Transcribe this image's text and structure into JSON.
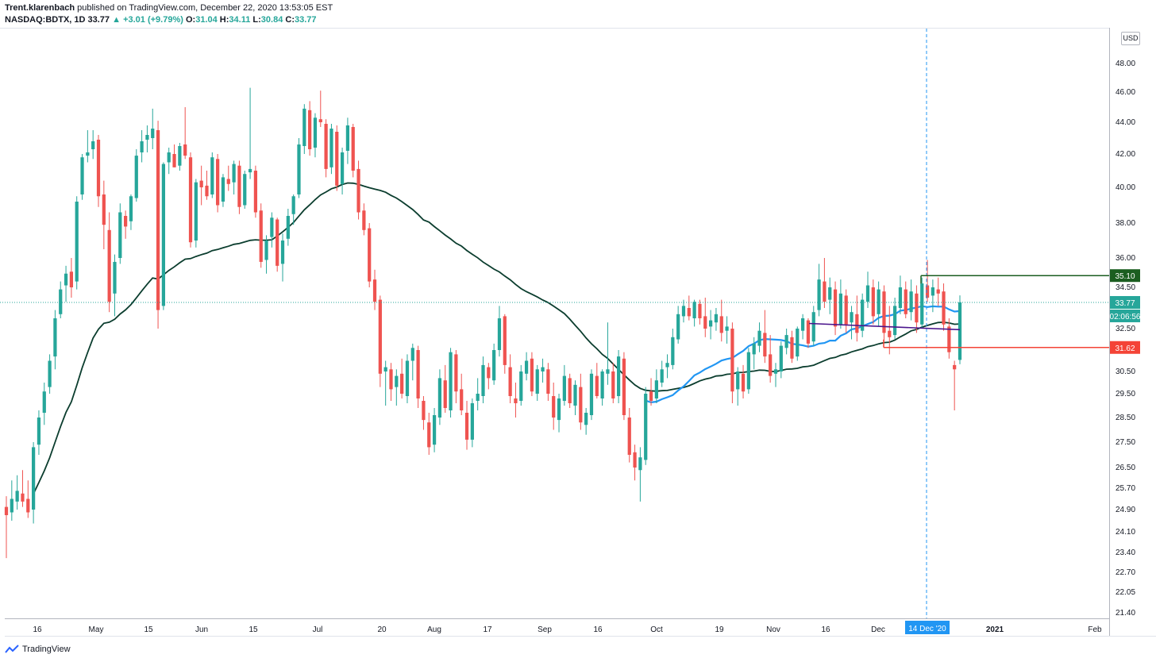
{
  "header": {
    "author": "Trent.klarenbach",
    "published": "published on TradingView.com, December 22, 2020 13:53:05 EST",
    "symbol": "NASDAQ:BDTX, 1D",
    "last": "33.77",
    "change": "+3.01 (+9.79%)",
    "o_label": "O:",
    "o_value": "31.04",
    "h_label": "H:",
    "h_value": "34.11",
    "l_label": "L:",
    "l_value": "30.84",
    "c_label": "C:",
    "c_value": "33.77"
  },
  "currency": "USD",
  "footer": {
    "brand": "TradingView"
  },
  "price_tags": {
    "resistance": "35.10",
    "last": "33.77",
    "countdown": "02:06:56",
    "support": "31.62"
  },
  "crosshair_date": "14 Dec '20",
  "colors": {
    "up": "#26a69a",
    "down": "#ef5350",
    "ema_dark": "#0b3d2e",
    "ema_blue": "#2196f3",
    "purple": "#4a148c",
    "resistance": "#1b5e20",
    "support": "#f44336"
  },
  "chart_data": {
    "type": "candlestick",
    "y_ticks": [
      "48.00",
      "46.00",
      "44.00",
      "42.00",
      "40.00",
      "38.00",
      "36.00",
      "34.50",
      "32.50",
      "30.50",
      "29.50",
      "28.50",
      "27.50",
      "26.50",
      "25.70",
      "24.90",
      "24.10",
      "23.40",
      "22.70",
      "22.05",
      "21.40"
    ],
    "x_ticks": [
      "16",
      "May",
      "15",
      "Jun",
      "15",
      "Jul",
      "20",
      "Aug",
      "17",
      "Sep",
      "16",
      "Oct",
      "19",
      "Nov",
      "16",
      "Dec",
      "2021",
      "Feb"
    ],
    "candles": [
      [
        25.0,
        25.4,
        23.2,
        24.7
      ],
      [
        24.8,
        26.0,
        24.5,
        25.3
      ],
      [
        25.2,
        26.2,
        24.9,
        25.6
      ],
      [
        25.5,
        26.4,
        25.0,
        25.2
      ],
      [
        25.3,
        26.0,
        24.6,
        24.8
      ],
      [
        24.9,
        27.5,
        24.4,
        27.3
      ],
      [
        27.4,
        28.8,
        27.0,
        28.5
      ],
      [
        28.7,
        30.0,
        28.2,
        29.6
      ],
      [
        29.8,
        31.3,
        29.5,
        31.0
      ],
      [
        31.2,
        33.4,
        30.6,
        33.0
      ],
      [
        33.2,
        34.8,
        33.0,
        34.4
      ],
      [
        34.6,
        35.6,
        33.8,
        35.2
      ],
      [
        35.3,
        36.0,
        34.0,
        34.5
      ],
      [
        34.8,
        39.5,
        34.4,
        39.2
      ],
      [
        39.6,
        42.0,
        39.3,
        41.8
      ],
      [
        41.9,
        43.5,
        41.5,
        42.1
      ],
      [
        42.3,
        43.5,
        41.7,
        42.8
      ],
      [
        42.9,
        43.2,
        38.9,
        39.5
      ],
      [
        39.6,
        40.4,
        36.5,
        37.9
      ],
      [
        37.6,
        38.6,
        33.3,
        33.8
      ],
      [
        34.2,
        36.2,
        33.1,
        35.8
      ],
      [
        36.0,
        39.1,
        35.7,
        38.6
      ],
      [
        38.4,
        38.7,
        37.1,
        37.8
      ],
      [
        38.1,
        39.6,
        37.6,
        39.5
      ],
      [
        39.4,
        42.3,
        39.2,
        41.9
      ],
      [
        42.1,
        43.5,
        41.5,
        42.8
      ],
      [
        42.9,
        43.8,
        42.1,
        43.2
      ],
      [
        43.0,
        44.9,
        42.3,
        43.6
      ],
      [
        43.5,
        44.1,
        32.5,
        33.4
      ],
      [
        33.6,
        41.5,
        33.4,
        41.4
      ],
      [
        41.5,
        42.4,
        40.8,
        42.1
      ],
      [
        42.0,
        42.6,
        41.2,
        41.2
      ],
      [
        41.3,
        42.7,
        41.0,
        42.5
      ],
      [
        42.6,
        45.0,
        41.7,
        41.9
      ],
      [
        41.8,
        42.1,
        36.6,
        36.9
      ],
      [
        37.0,
        40.5,
        36.6,
        40.3
      ],
      [
        40.4,
        41.3,
        39.0,
        40.0
      ],
      [
        40.1,
        41.0,
        39.3,
        39.5
      ],
      [
        39.6,
        42.1,
        39.4,
        41.8
      ],
      [
        41.7,
        42.0,
        38.6,
        39.0
      ],
      [
        39.2,
        40.8,
        38.9,
        40.6
      ],
      [
        40.5,
        41.3,
        39.8,
        40.2
      ],
      [
        40.3,
        41.6,
        39.6,
        41.4
      ],
      [
        41.3,
        41.6,
        38.5,
        38.9
      ],
      [
        39.0,
        41.0,
        38.8,
        40.8
      ],
      [
        40.9,
        46.3,
        40.5,
        41.1
      ],
      [
        41.0,
        41.3,
        38.3,
        38.6
      ],
      [
        38.7,
        39.1,
        35.5,
        35.8
      ],
      [
        35.9,
        37.3,
        35.2,
        37.0
      ],
      [
        37.2,
        38.6,
        36.6,
        38.3
      ],
      [
        38.2,
        38.3,
        35.3,
        35.6
      ],
      [
        35.7,
        37.4,
        34.8,
        37.0
      ],
      [
        37.1,
        38.8,
        36.7,
        38.4
      ],
      [
        38.5,
        39.6,
        37.9,
        39.5
      ],
      [
        39.6,
        43.0,
        39.4,
        42.6
      ],
      [
        42.5,
        45.2,
        42.0,
        44.9
      ],
      [
        44.8,
        45.4,
        41.9,
        42.3
      ],
      [
        42.4,
        44.6,
        41.8,
        44.3
      ],
      [
        44.2,
        46.1,
        43.7,
        44.0
      ],
      [
        43.9,
        44.2,
        40.6,
        41.1
      ],
      [
        41.2,
        43.9,
        40.8,
        43.6
      ],
      [
        43.4,
        43.8,
        39.8,
        40.1
      ],
      [
        40.2,
        42.4,
        39.6,
        42.1
      ],
      [
        42.2,
        44.3,
        41.4,
        43.8
      ],
      [
        43.7,
        43.9,
        40.6,
        41.0
      ],
      [
        41.1,
        41.6,
        38.2,
        38.6
      ],
      [
        38.7,
        39.1,
        37.3,
        37.6
      ],
      [
        37.7,
        38.0,
        34.5,
        34.8
      ],
      [
        34.9,
        35.4,
        33.4,
        33.8
      ],
      [
        33.9,
        34.1,
        29.8,
        30.4
      ],
      [
        30.5,
        31.0,
        29.0,
        30.7
      ],
      [
        30.6,
        30.9,
        29.2,
        29.7
      ],
      [
        29.8,
        30.6,
        29.0,
        30.3
      ],
      [
        30.4,
        31.1,
        29.3,
        29.5
      ],
      [
        29.4,
        31.3,
        29.1,
        31.0
      ],
      [
        31.0,
        31.8,
        30.1,
        31.6
      ],
      [
        31.5,
        31.7,
        28.9,
        29.3
      ],
      [
        29.2,
        29.4,
        28.0,
        28.4
      ],
      [
        28.3,
        28.7,
        27.0,
        27.3
      ],
      [
        27.4,
        28.9,
        27.1,
        28.6
      ],
      [
        28.5,
        30.6,
        28.2,
        30.2
      ],
      [
        30.1,
        30.8,
        28.7,
        28.9
      ],
      [
        28.8,
        31.6,
        28.5,
        31.4
      ],
      [
        31.3,
        31.5,
        29.1,
        29.6
      ],
      [
        29.7,
        30.4,
        28.6,
        28.8
      ],
      [
        28.7,
        29.2,
        27.2,
        27.6
      ],
      [
        27.6,
        29.3,
        27.3,
        29.1
      ],
      [
        29.2,
        30.2,
        28.8,
        29.5
      ],
      [
        29.4,
        31.2,
        29.1,
        30.8
      ],
      [
        30.7,
        30.9,
        29.7,
        30.2
      ],
      [
        30.1,
        31.8,
        29.9,
        31.5
      ],
      [
        31.5,
        33.6,
        31.2,
        33.0
      ],
      [
        33.1,
        33.2,
        30.4,
        30.8
      ],
      [
        30.7,
        31.3,
        29.1,
        29.4
      ],
      [
        29.3,
        30.0,
        28.5,
        29.1
      ],
      [
        29.2,
        30.8,
        29.0,
        30.5
      ],
      [
        30.4,
        31.4,
        30.1,
        31.0
      ],
      [
        31.1,
        31.4,
        29.4,
        29.6
      ],
      [
        29.5,
        30.8,
        29.2,
        30.6
      ],
      [
        30.5,
        31.1,
        30.0,
        30.7
      ],
      [
        30.6,
        30.9,
        29.2,
        29.5
      ],
      [
        29.4,
        30.0,
        28.0,
        28.5
      ],
      [
        28.4,
        29.5,
        27.9,
        29.3
      ],
      [
        29.2,
        30.8,
        29.0,
        30.3
      ],
      [
        30.2,
        30.4,
        28.9,
        29.1
      ],
      [
        29.0,
        30.1,
        28.6,
        29.9
      ],
      [
        29.8,
        30.4,
        28.0,
        28.3
      ],
      [
        28.2,
        28.9,
        27.8,
        28.7
      ],
      [
        28.6,
        30.6,
        28.4,
        30.4
      ],
      [
        30.3,
        30.9,
        29.3,
        29.4
      ],
      [
        29.3,
        30.6,
        29.0,
        30.5
      ],
      [
        30.4,
        32.8,
        29.9,
        30.6
      ],
      [
        30.5,
        30.9,
        29.1,
        29.3
      ],
      [
        29.4,
        31.5,
        29.1,
        31.2
      ],
      [
        31.1,
        31.4,
        28.4,
        28.6
      ],
      [
        28.5,
        28.9,
        26.7,
        27.0
      ],
      [
        27.1,
        27.4,
        26.0,
        26.5
      ],
      [
        26.4,
        27.3,
        25.2,
        26.9
      ],
      [
        26.8,
        29.8,
        26.6,
        29.5
      ],
      [
        29.6,
        30.2,
        29.0,
        29.2
      ],
      [
        29.3,
        30.6,
        29.1,
        30.1
      ],
      [
        30.0,
        31.0,
        29.8,
        30.6
      ],
      [
        30.7,
        31.3,
        30.2,
        30.9
      ],
      [
        30.8,
        32.5,
        30.6,
        32.1
      ],
      [
        32.0,
        33.6,
        31.8,
        33.2
      ],
      [
        33.1,
        33.9,
        32.8,
        33.6
      ],
      [
        33.5,
        34.1,
        32.9,
        33.1
      ],
      [
        33.0,
        33.9,
        32.6,
        33.8
      ],
      [
        33.7,
        33.9,
        32.7,
        33.0
      ],
      [
        33.1,
        34.0,
        32.1,
        32.5
      ],
      [
        32.6,
        33.4,
        32.0,
        32.9
      ],
      [
        32.8,
        33.5,
        32.4,
        33.2
      ],
      [
        33.1,
        33.9,
        31.9,
        32.3
      ],
      [
        32.4,
        33.1,
        31.8,
        32.6
      ],
      [
        32.5,
        32.8,
        29.1,
        29.6
      ],
      [
        29.7,
        30.7,
        29.0,
        30.5
      ],
      [
        30.4,
        30.8,
        29.3,
        29.6
      ],
      [
        29.7,
        31.6,
        29.5,
        31.4
      ],
      [
        31.3,
        32.1,
        30.6,
        31.8
      ],
      [
        31.7,
        32.8,
        31.4,
        32.4
      ],
      [
        32.3,
        33.4,
        30.9,
        31.2
      ],
      [
        31.3,
        32.2,
        30.0,
        30.3
      ],
      [
        30.4,
        30.9,
        29.8,
        30.6
      ],
      [
        30.5,
        31.9,
        30.2,
        31.7
      ],
      [
        31.6,
        32.5,
        31.3,
        32.2
      ],
      [
        32.1,
        32.4,
        30.9,
        31.1
      ],
      [
        31.2,
        32.6,
        31.0,
        32.5
      ],
      [
        32.4,
        33.2,
        32.0,
        33.0
      ],
      [
        32.9,
        33.0,
        31.6,
        31.8
      ],
      [
        31.9,
        33.6,
        31.7,
        33.3
      ],
      [
        33.4,
        35.7,
        33.1,
        34.9
      ],
      [
        34.8,
        36.0,
        33.5,
        33.8
      ],
      [
        33.9,
        35.0,
        33.2,
        34.5
      ],
      [
        34.4,
        34.8,
        32.2,
        32.6
      ],
      [
        32.7,
        34.9,
        32.5,
        34.2
      ],
      [
        34.1,
        34.4,
        32.3,
        32.7
      ],
      [
        32.8,
        33.6,
        32.0,
        33.3
      ],
      [
        33.2,
        34.1,
        31.9,
        32.3
      ],
      [
        32.4,
        34.2,
        32.1,
        33.9
      ],
      [
        33.8,
        35.3,
        33.5,
        34.6
      ],
      [
        34.5,
        34.9,
        32.7,
        33.1
      ],
      [
        33.2,
        34.8,
        32.6,
        34.4
      ],
      [
        34.3,
        34.6,
        31.9,
        32.3
      ],
      [
        32.4,
        33.6,
        31.3,
        32.1
      ],
      [
        32.2,
        34.0,
        32.0,
        33.6
      ],
      [
        33.5,
        35.1,
        33.2,
        34.5
      ],
      [
        34.4,
        34.8,
        33.0,
        33.2
      ],
      [
        33.3,
        34.9,
        32.9,
        34.3
      ],
      [
        34.2,
        34.6,
        32.3,
        32.8
      ],
      [
        32.7,
        35.0,
        32.5,
        34.7
      ],
      [
        34.6,
        35.9,
        33.8,
        34.0
      ],
      [
        34.1,
        34.9,
        33.3,
        34.5
      ],
      [
        34.4,
        35.0,
        33.6,
        34.2
      ],
      [
        34.3,
        34.7,
        32.4,
        32.7
      ],
      [
        32.6,
        33.0,
        31.1,
        31.4
      ],
      [
        30.8,
        31.0,
        28.8,
        30.6
      ],
      [
        31.04,
        34.11,
        30.84,
        33.77
      ]
    ]
  }
}
